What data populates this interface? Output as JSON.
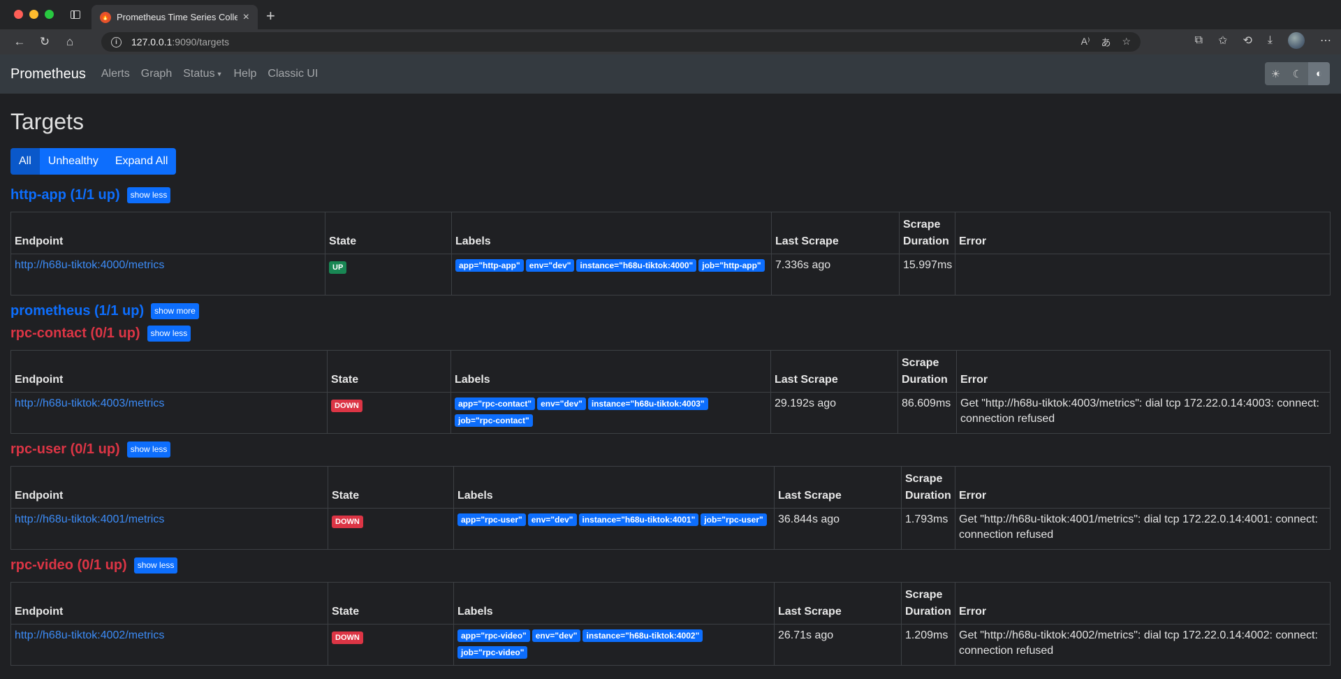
{
  "browser": {
    "tab_title": "Prometheus Time Series Collection and Processing Server",
    "url_host": "127.0.0.1",
    "url_path": ":9090/targets"
  },
  "navbar": {
    "brand": "Prometheus",
    "links": [
      "Alerts",
      "Graph",
      "Status",
      "Help",
      "Classic UI"
    ]
  },
  "page": {
    "title": "Targets",
    "filters": [
      "All",
      "Unhealthy",
      "Expand All"
    ]
  },
  "columns": [
    "Endpoint",
    "State",
    "Labels",
    "Last Scrape",
    "Scrape Duration",
    "Error"
  ],
  "jobs": [
    {
      "title": "http-app (1/1 up)",
      "toggle": "show less",
      "endpoint": "http://h68u-tiktok:4000/metrics",
      "state": "UP",
      "labels": [
        "app=\"http-app\"",
        "env=\"dev\"",
        "instance=\"h68u-tiktok:4000\"",
        "job=\"http-app\""
      ],
      "last_scrape": "7.336s ago",
      "duration": "15.997ms",
      "error": ""
    },
    {
      "title": "prometheus (1/1 up)",
      "toggle": "show more"
    },
    {
      "title": "rpc-contact (0/1 up)",
      "toggle": "show less",
      "endpoint": "http://h68u-tiktok:4003/metrics",
      "state": "DOWN",
      "labels": [
        "app=\"rpc-contact\"",
        "env=\"dev\"",
        "instance=\"h68u-tiktok:4003\"",
        "job=\"rpc-contact\""
      ],
      "last_scrape": "29.192s ago",
      "duration": "86.609ms",
      "error": "Get \"http://h68u-tiktok:4003/metrics\": dial tcp 172.22.0.14:4003: connect: connection refused"
    },
    {
      "title": "rpc-user (0/1 up)",
      "toggle": "show less",
      "endpoint": "http://h68u-tiktok:4001/metrics",
      "state": "DOWN",
      "labels": [
        "app=\"rpc-user\"",
        "env=\"dev\"",
        "instance=\"h68u-tiktok:4001\"",
        "job=\"rpc-user\""
      ],
      "last_scrape": "36.844s ago",
      "duration": "1.793ms",
      "error": "Get \"http://h68u-tiktok:4001/metrics\": dial tcp 172.22.0.14:4001: connect: connection refused"
    },
    {
      "title": "rpc-video (0/1 up)",
      "toggle": "show less",
      "endpoint": "http://h68u-tiktok:4002/metrics",
      "state": "DOWN",
      "labels": [
        "app=\"rpc-video\"",
        "env=\"dev\"",
        "instance=\"h68u-tiktok:4002\"",
        "job=\"rpc-video\""
      ],
      "last_scrape": "26.71s ago",
      "duration": "1.209ms",
      "error": "Get \"http://h68u-tiktok:4002/metrics\": dial tcp 172.22.0.14:4002: connect: connection refused"
    }
  ]
}
